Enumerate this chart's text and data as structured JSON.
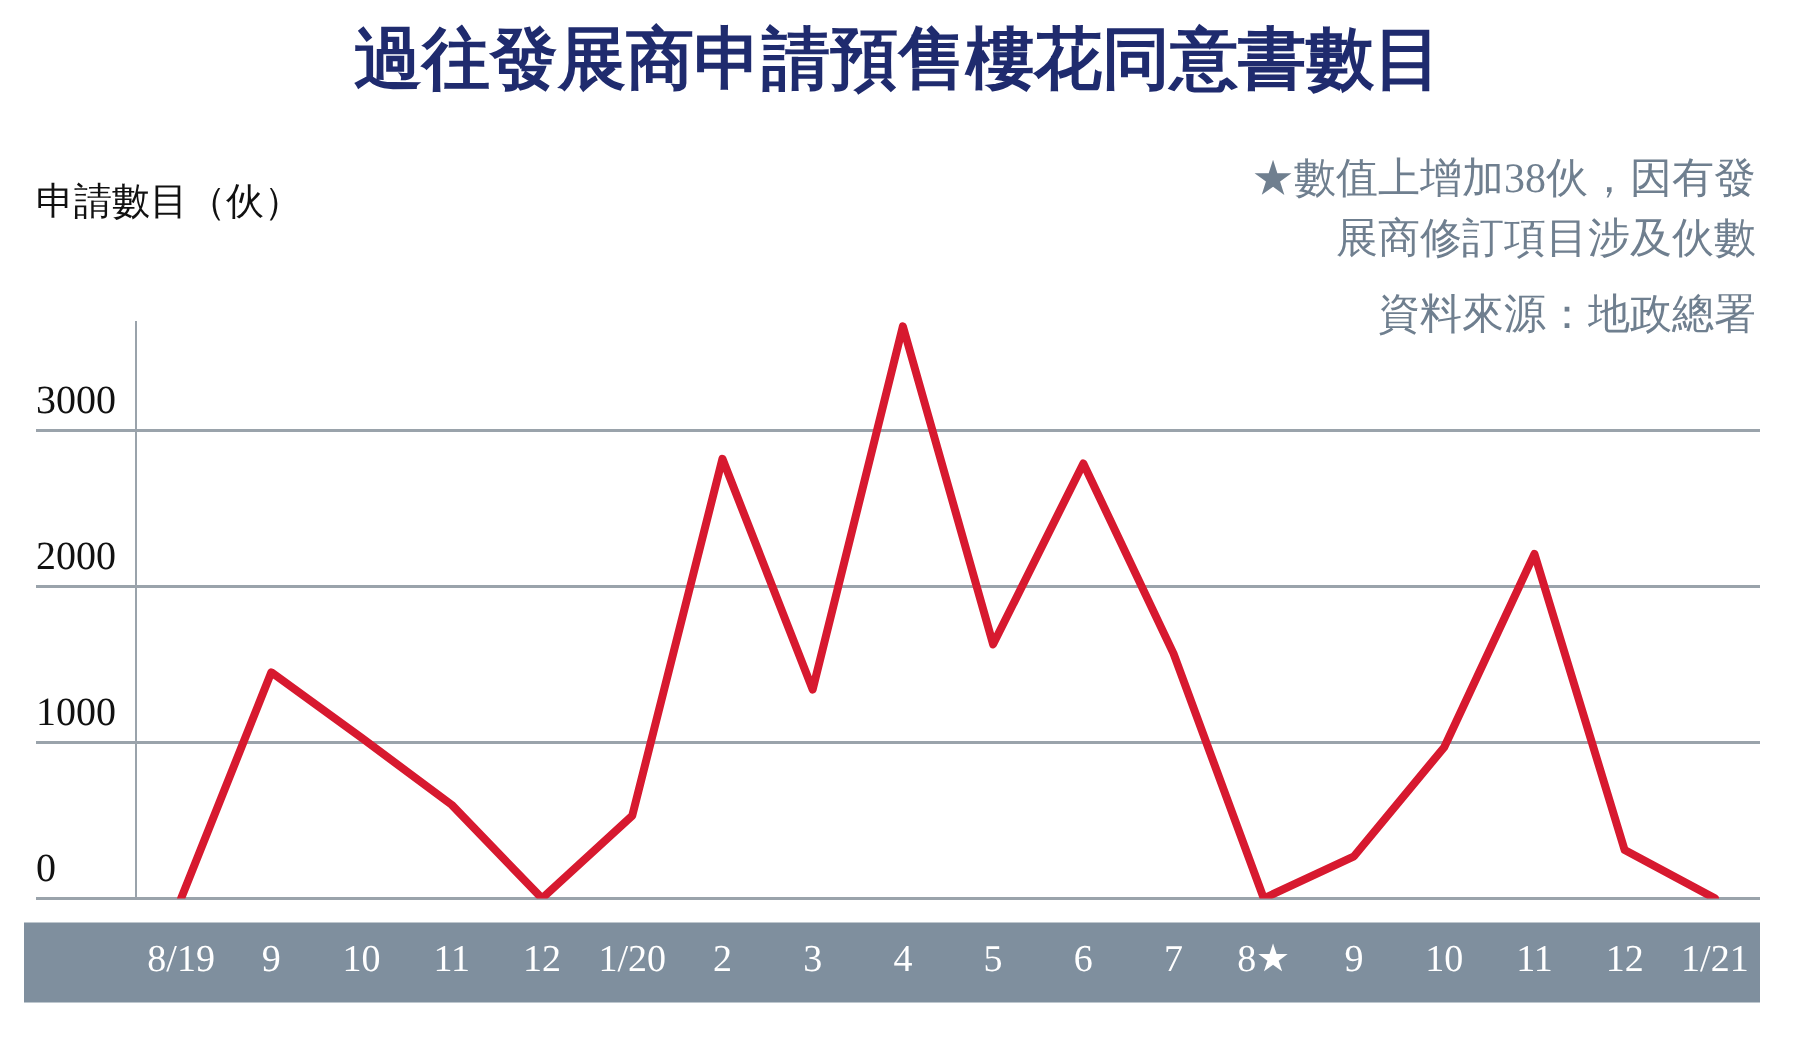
{
  "chart_data": {
    "type": "line",
    "title": "過往發展商申請預售樓花同意書數目",
    "ylabel": "申請數目（伙）",
    "annotations": [
      "★數值上增加38伙，因有發展商修訂項目涉及伙數",
      "資料來源：地政總署"
    ],
    "categories": [
      "8/19",
      "9",
      "10",
      "11",
      "12",
      "1/20",
      "2",
      "3",
      "4",
      "5",
      "6",
      "7",
      "8★",
      "9",
      "10",
      "11",
      "12",
      "1/21"
    ],
    "series": [
      {
        "color": "#d7192f",
        "values": [
          0,
          1450,
          1030,
          600,
          0,
          530,
          2820,
          1340,
          3670,
          1630,
          2790,
          1570,
          0,
          270,
          970,
          2210,
          310,
          0
        ]
      }
    ],
    "ylim": [
      0,
      3700
    ],
    "yticks": [
      0,
      1000,
      2000,
      3000
    ],
    "grid": "y",
    "legend": false,
    "marker": "none",
    "line_style": "solid"
  }
}
